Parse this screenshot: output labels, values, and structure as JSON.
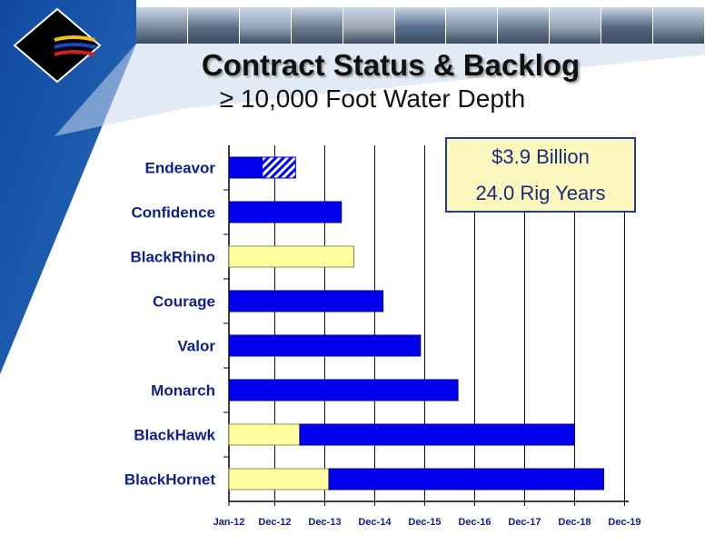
{
  "slide": {
    "title": "Contract Status & Backlog",
    "subtitle": "≥ 10,000 Foot Water Depth",
    "summary": {
      "line1": "$3.9 Billion",
      "line2": "24.0 Rig Years"
    },
    "photo_strip_tiles": 11
  },
  "colors": {
    "contracted": "#0000ee",
    "available": "#ffffa0",
    "option": "#0000ee",
    "background_panel": "#1b56a6",
    "light_panel": "#c8d8ec",
    "title_shadow": "#9a9a9a",
    "box_border": "#243a8c"
  },
  "chart_data": {
    "type": "bar",
    "orientation": "horizontal",
    "stacked": true,
    "x_ticks": [
      "Jan-12",
      "Dec-12",
      "Dec-13",
      "Dec-14",
      "Dec-15",
      "Dec-16",
      "Dec-17",
      "Dec-18",
      "Dec-19"
    ],
    "xlim": [
      "2012-01",
      "2020-01"
    ],
    "grid": "vertical",
    "legend": "none",
    "categories": [
      "Endeavor",
      "Confidence",
      "BlackRhino",
      "Courage",
      "Valor",
      "Monarch",
      "BlackHawk",
      "BlackHornet"
    ],
    "bars": [
      {
        "rig": "Endeavor",
        "segments": [
          {
            "status": "contracted",
            "start": "2012-01",
            "end": "2012-09"
          },
          {
            "status": "option",
            "start": "2012-09",
            "end": "2013-05"
          }
        ]
      },
      {
        "rig": "Confidence",
        "segments": [
          {
            "status": "contracted",
            "start": "2012-01",
            "end": "2014-04"
          }
        ]
      },
      {
        "rig": "BlackRhino",
        "segments": [
          {
            "status": "available",
            "start": "2012-01",
            "end": "2014-07"
          }
        ]
      },
      {
        "rig": "Courage",
        "segments": [
          {
            "status": "contracted",
            "start": "2012-01",
            "end": "2015-02"
          }
        ]
      },
      {
        "rig": "Valor",
        "segments": [
          {
            "status": "contracted",
            "start": "2012-01",
            "end": "2015-11"
          }
        ]
      },
      {
        "rig": "Monarch",
        "segments": [
          {
            "status": "contracted",
            "start": "2012-01",
            "end": "2016-08"
          }
        ]
      },
      {
        "rig": "BlackHawk",
        "segments": [
          {
            "status": "available",
            "start": "2012-01",
            "end": "2013-06"
          },
          {
            "status": "contracted",
            "start": "2013-06",
            "end": "2018-12"
          }
        ]
      },
      {
        "rig": "BlackHornet",
        "segments": [
          {
            "status": "available",
            "start": "2012-01",
            "end": "2014-01"
          },
          {
            "status": "contracted",
            "start": "2014-01",
            "end": "2019-07"
          }
        ]
      }
    ]
  }
}
